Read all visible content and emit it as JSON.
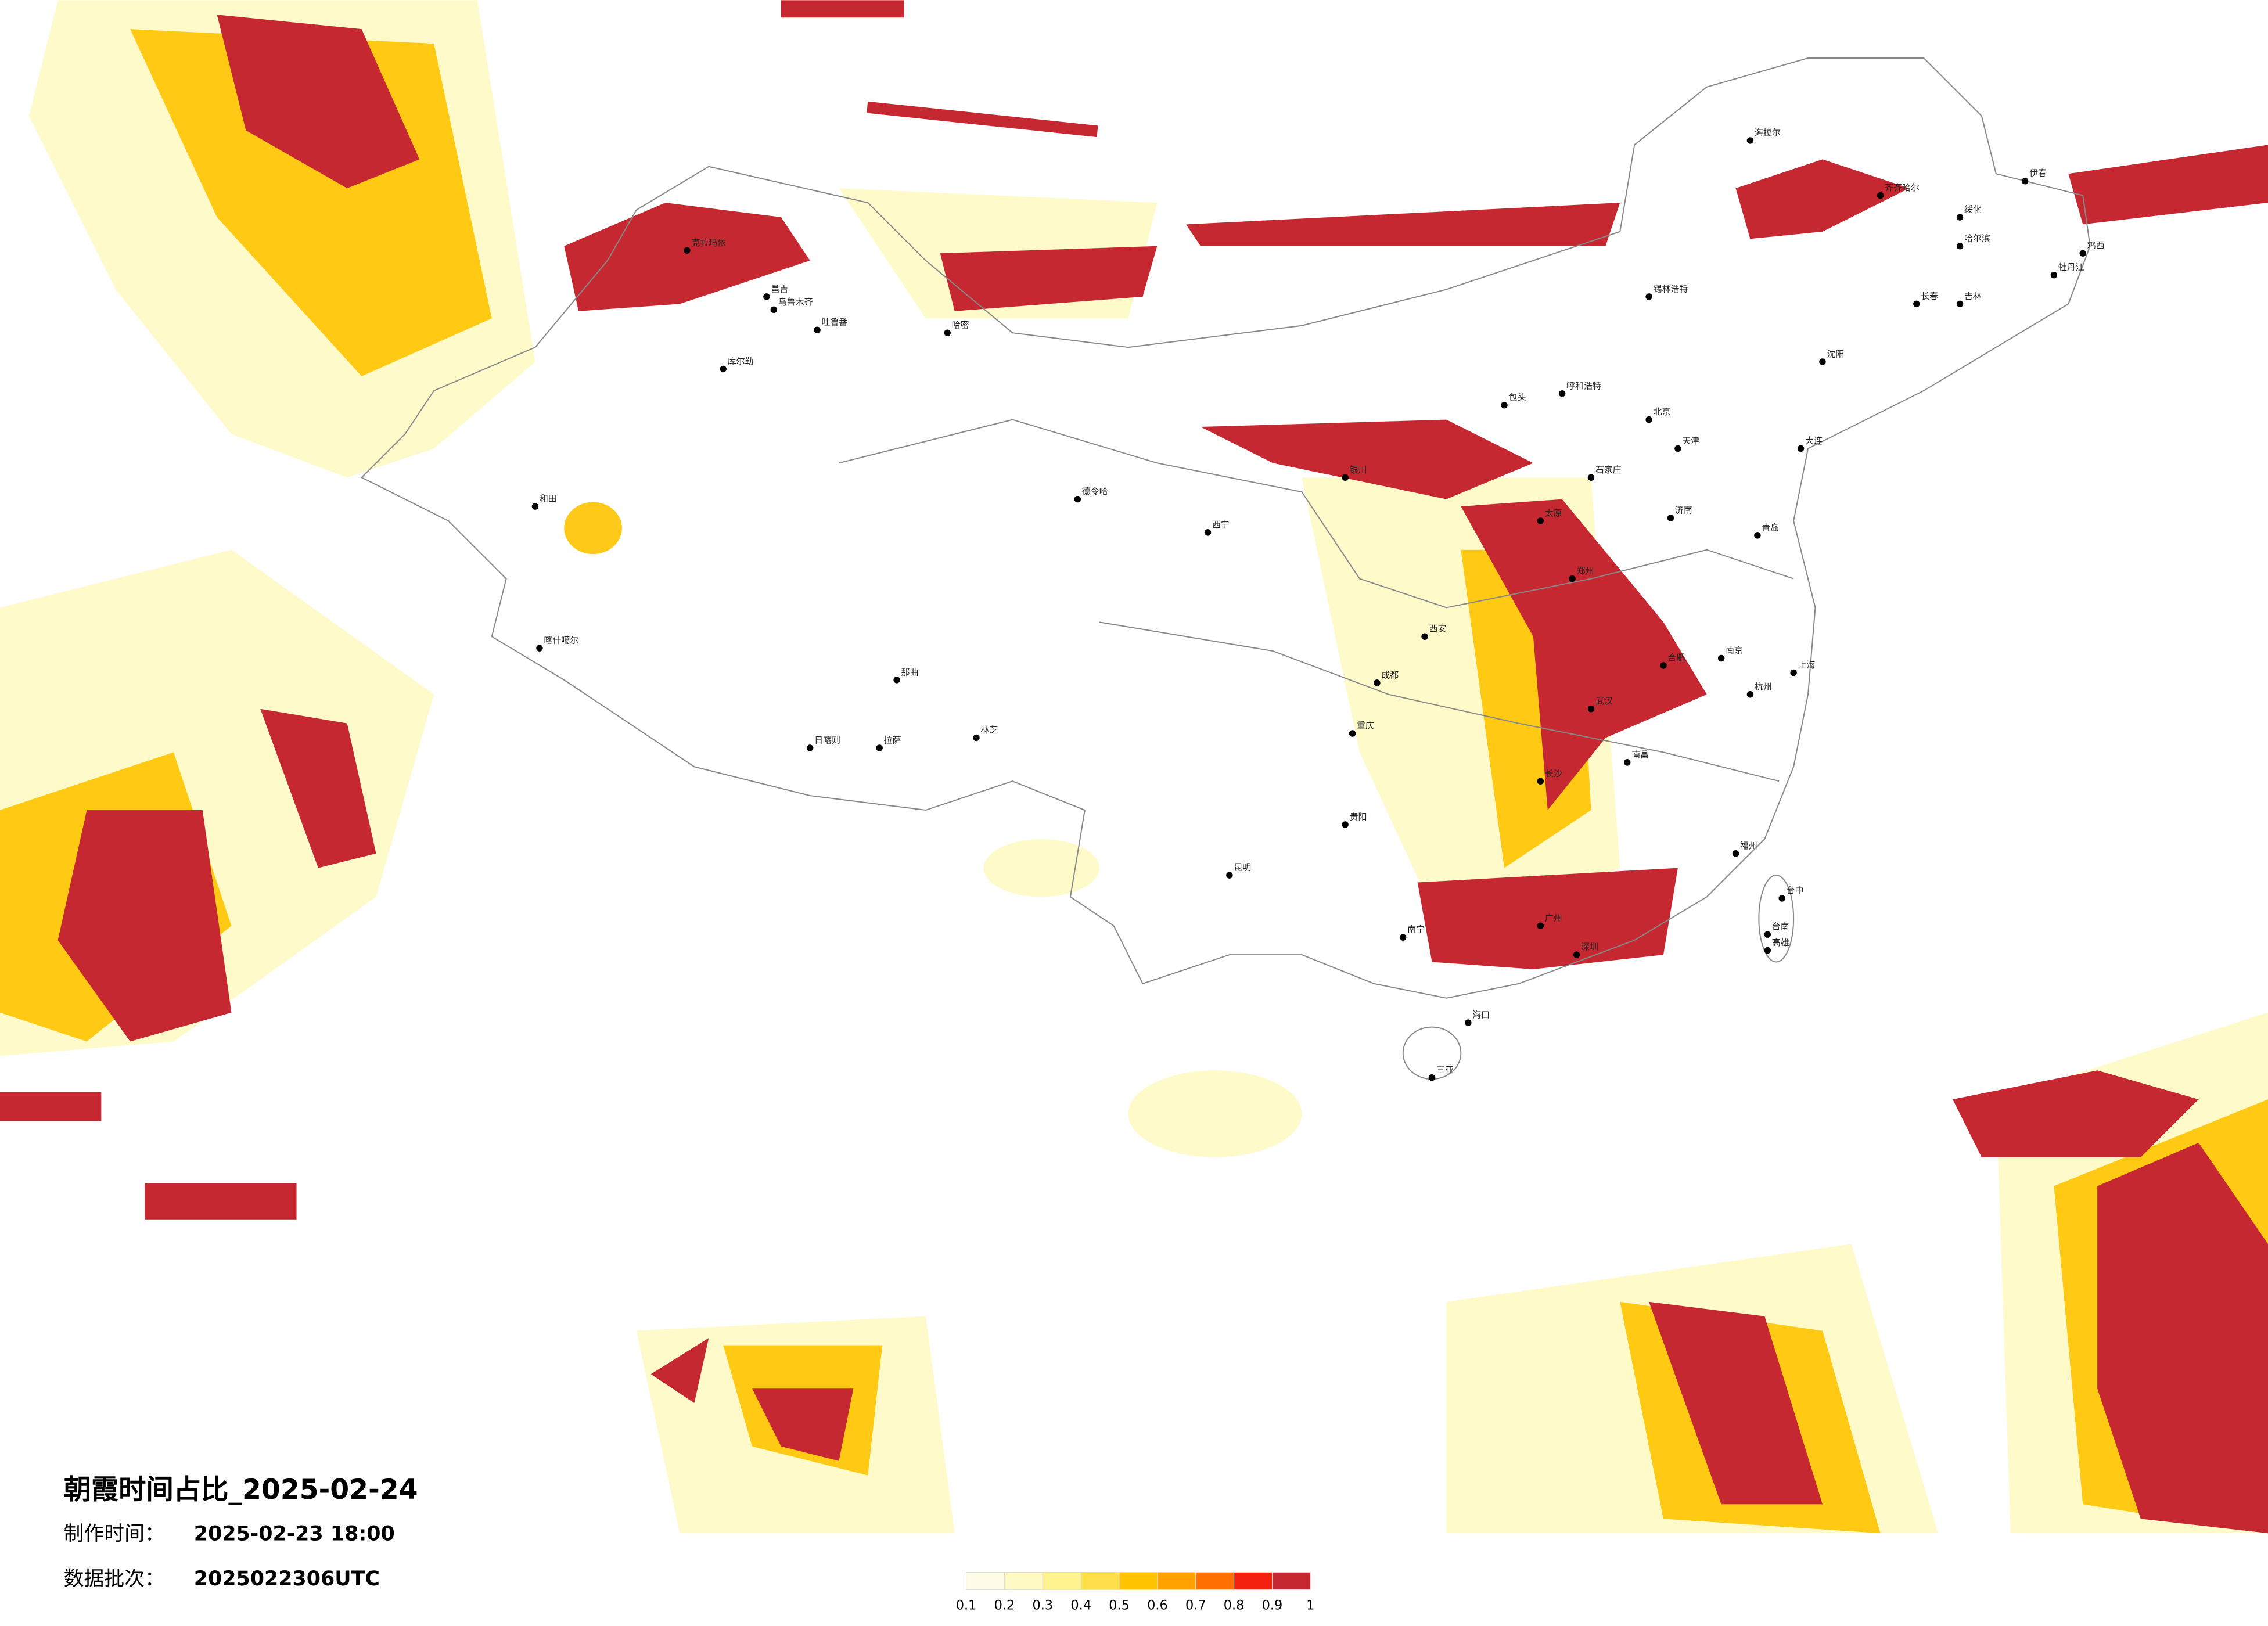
{
  "title": "朝霞时间占比_2025-02-24",
  "made_label": "制作时间：",
  "made_time": "2025-02-23 18:00",
  "batch_label": "数据批次：",
  "batch": "2025022306UTC",
  "legend": {
    "ticks": [
      0.1,
      0.2,
      0.3,
      0.4,
      0.5,
      0.6,
      0.7,
      0.8,
      0.9,
      1
    ],
    "colors": [
      "#fffde8",
      "#fff9c4",
      "#fff38f",
      "#ffe04a",
      "#ffc300",
      "#ffa200",
      "#ff7000",
      "#f5210f",
      "#c62832"
    ]
  },
  "cities": [
    "克拉玛依",
    "昌吉",
    "乌鲁木齐",
    "吐鲁番",
    "哈密",
    "库尔勒",
    "和田",
    "喀什噶尔",
    "德令哈",
    "西宁",
    "那曲",
    "拉萨",
    "日喀则",
    "林芝",
    "成都",
    "重庆",
    "昆明",
    "贵阳",
    "南宁",
    "海口",
    "三亚",
    "广州",
    "深圳",
    "福州",
    "台中",
    "台南",
    "高雄",
    "上海",
    "南京",
    "杭州",
    "合肥",
    "武汉",
    "长沙",
    "南昌",
    "郑州",
    "西安",
    "太原",
    "石家庄",
    "北京",
    "天津",
    "济南",
    "青岛",
    "大连",
    "沈阳",
    "长春",
    "吉林",
    "哈尔滨",
    "齐齐哈尔",
    "绥化",
    "伊春",
    "牡丹江",
    "鸡西",
    "海拉尔",
    "锡林浩特",
    "呼和浩特",
    "包头",
    "银川"
  ]
}
